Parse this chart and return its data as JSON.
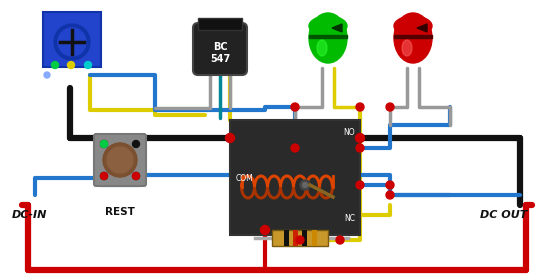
{
  "bg_color": "#ffffff",
  "dc_in_label": "DC-IN",
  "dc_out_label": "DC OUT",
  "rest_label": "REST",
  "nc_label": "NC",
  "com_label": "COM",
  "no_label": "NO",
  "bc547_label": "BC\n547",
  "wire_colors": {
    "red": "#cc0000",
    "blue": "#2277cc",
    "yellow": "#ddcc00",
    "black": "#111111",
    "gray": "#999999",
    "green": "#00aa00",
    "teal": "#008899",
    "purple": "#884499"
  },
  "lw_wire": 3.0,
  "lw_thick": 4.5,
  "lw_thin": 2.0
}
